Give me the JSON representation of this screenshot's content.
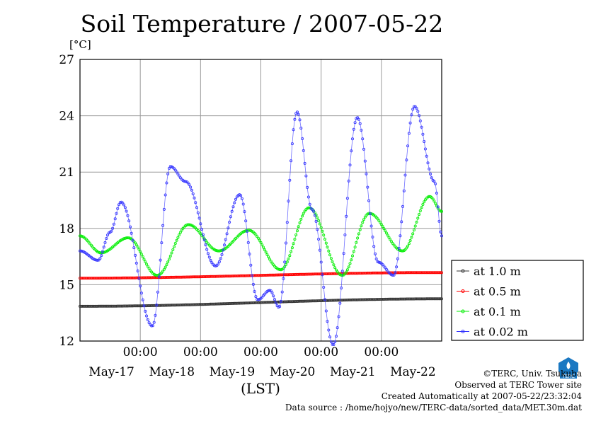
{
  "chart_data": {
    "type": "line",
    "title": "Soil Temperature / 2007-05-22",
    "unit_label": "[°C]",
    "xlabel": "(LST)",
    "ylim": [
      12,
      27
    ],
    "yticks": [
      12,
      15,
      18,
      21,
      24,
      27
    ],
    "xlim": [
      0,
      6
    ],
    "time_ticks": [
      "00:00",
      "00:00",
      "00:00",
      "00:00",
      "00:00"
    ],
    "time_tick_x": [
      1,
      2,
      3,
      4,
      5
    ],
    "date_labels": [
      "May-17",
      "May-18",
      "May-19",
      "May-20",
      "May-21",
      "May-22"
    ],
    "date_label_x": [
      0.5,
      1.5,
      2.5,
      3.5,
      4.5,
      5.5
    ],
    "grid": true,
    "legend_position": "right",
    "series": [
      {
        "name": "at 1.0 m",
        "color": "#333333",
        "x": [
          0,
          6
        ],
        "values": [
          13.85,
          14.25
        ]
      },
      {
        "name": "at 0.5 m",
        "color": "#ff0000",
        "x": [
          0,
          6
        ],
        "values": [
          15.35,
          15.65
        ]
      },
      {
        "name": "at 0.1 m",
        "color": "#00ee00",
        "x": [
          0,
          0.35,
          0.8,
          1.28,
          1.8,
          2.3,
          2.8,
          3.33,
          3.8,
          4.35,
          4.8,
          5.35,
          5.8,
          6.0
        ],
        "values": [
          17.6,
          16.7,
          17.5,
          15.5,
          18.2,
          16.8,
          17.9,
          15.8,
          19.1,
          15.5,
          18.8,
          16.8,
          19.7,
          18.9
        ]
      },
      {
        "name": "at 0.02 m",
        "color": "#3333ff",
        "x": [
          0,
          0.3,
          0.5,
          0.68,
          1.2,
          1.5,
          1.75,
          2.25,
          2.65,
          2.95,
          3.15,
          3.3,
          3.6,
          3.85,
          4.2,
          4.6,
          4.95,
          5.2,
          5.55,
          5.88,
          6.0
        ],
        "values": [
          16.8,
          16.3,
          17.8,
          19.4,
          12.8,
          21.3,
          20.5,
          16.0,
          19.8,
          14.2,
          14.7,
          13.8,
          24.2,
          19.0,
          11.8,
          23.9,
          16.2,
          15.5,
          24.5,
          20.5,
          17.6
        ]
      }
    ]
  },
  "credits": {
    "line1": "©TERC, Univ. Tsukuba",
    "line2": "Observed at TERC Tower site",
    "line3": "Created Automatically at 2007-05-22/23:32:04",
    "line4": "Data source : /home/hojyo/new/TERC-data/sorted_data/MET.30m.dat"
  },
  "logo_text": "TERC",
  "colors": {
    "grid": "#9a9a9a"
  }
}
